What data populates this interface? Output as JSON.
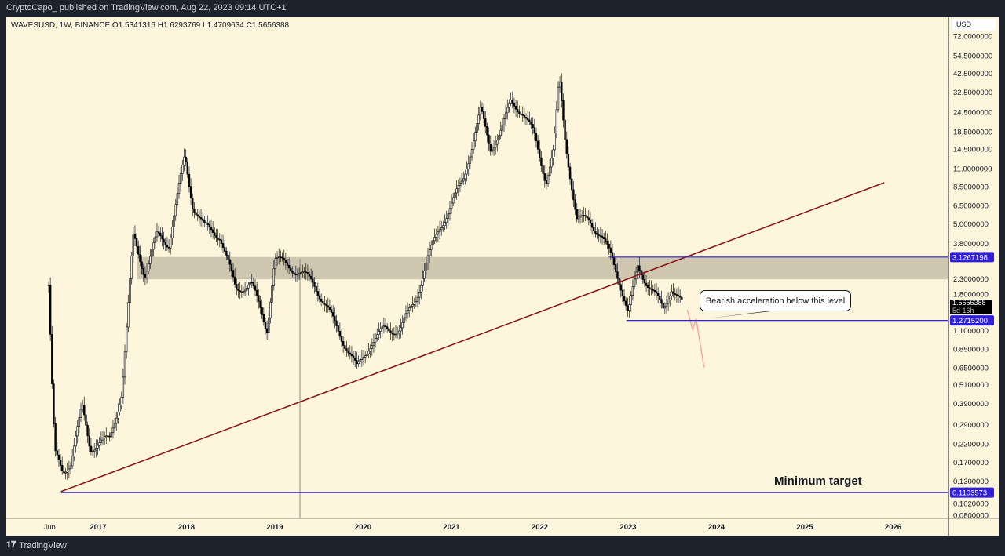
{
  "published": "CryptoCapo_ published on TradingView.com, Aug 22, 2023 09:14 UTC+1",
  "legend": "WAVESUSD, 1W, BINANCE  O1.5341316  H1.6293769  L1.4709634  C1.5656388",
  "currency": "USD",
  "footer_brand": "TradingView",
  "annotation": "Bearish acceleration below this level",
  "target_label": "Minimum target",
  "last_price": {
    "value": "1.5656388",
    "countdown": "5d 16h"
  },
  "colors": {
    "trendline": "#8b1a1a",
    "levels": "#2f1fd8",
    "zone": "#cfc6b0",
    "scribble": "#f4a6a6"
  },
  "chart_data": {
    "type": "candlestick",
    "symbol": "WAVESUSD",
    "interval": "1W",
    "y_scale": "log",
    "ylim": [
      0.08,
      72
    ],
    "y_ticks": [
      "72.0000000",
      "54.5000000",
      "42.5000000",
      "32.5000000",
      "24.5000000",
      "18.5000000",
      "14.5000000",
      "11.0000000",
      "8.5000000",
      "6.5000000",
      "5.0000000",
      "3.8000000",
      "2.3000000",
      "1.8000000",
      "1.1000000",
      "0.8500000",
      "0.6500000",
      "0.5100000",
      "0.3900000",
      "0.2900000",
      "0.2200000",
      "0.1700000",
      "0.1300000",
      "0.1020000",
      "0.0800000"
    ],
    "x_ticks": [
      {
        "label": "Jun",
        "t": 2016.45
      },
      {
        "label": "2017",
        "t": 2017
      },
      {
        "label": "2018",
        "t": 2018
      },
      {
        "label": "2019",
        "t": 2019
      },
      {
        "label": "2020",
        "t": 2020
      },
      {
        "label": "2021",
        "t": 2021
      },
      {
        "label": "2022",
        "t": 2022
      },
      {
        "label": "2023",
        "t": 2023
      },
      {
        "label": "2024",
        "t": 2024
      },
      {
        "label": "2025",
        "t": 2025
      },
      {
        "label": "2026",
        "t": 2026
      }
    ],
    "price_path": [
      [
        2016.44,
        2.1
      ],
      [
        2016.48,
        0.46
      ],
      [
        2016.51,
        0.19
      ],
      [
        2016.6,
        0.15
      ],
      [
        2016.69,
        0.17
      ],
      [
        2016.82,
        0.37
      ],
      [
        2016.91,
        0.21
      ],
      [
        2017.13,
        0.236
      ],
      [
        2017.27,
        0.46
      ],
      [
        2017.4,
        4.26
      ],
      [
        2017.53,
        2.44
      ],
      [
        2017.67,
        4.26
      ],
      [
        2017.8,
        3.8
      ],
      [
        2017.98,
        13
      ],
      [
        2018.07,
        6.6
      ],
      [
        2018.2,
        4.8
      ],
      [
        2018.38,
        4.26
      ],
      [
        2018.56,
        1.95
      ],
      [
        2018.73,
        2.18
      ],
      [
        2018.91,
        1.12
      ],
      [
        2019.0,
        3.04
      ],
      [
        2019.18,
        2.72
      ],
      [
        2019.44,
        2.18
      ],
      [
        2019.62,
        1.4
      ],
      [
        2019.8,
        0.9
      ],
      [
        2019.93,
        0.64
      ],
      [
        2020.07,
        0.9
      ],
      [
        2020.24,
        1.12
      ],
      [
        2020.42,
        1.12
      ],
      [
        2020.6,
        1.75
      ],
      [
        2020.73,
        3.04
      ],
      [
        2020.87,
        4.8
      ],
      [
        2021.0,
        6.6
      ],
      [
        2021.13,
        9.3
      ],
      [
        2021.22,
        14.5
      ],
      [
        2021.33,
        25
      ],
      [
        2021.44,
        14.5
      ],
      [
        2021.58,
        20
      ],
      [
        2021.67,
        28
      ],
      [
        2021.8,
        25
      ],
      [
        2021.93,
        18
      ],
      [
        2022.07,
        9.3
      ],
      [
        2022.16,
        14.5
      ],
      [
        2022.22,
        39.5
      ],
      [
        2022.29,
        16
      ],
      [
        2022.42,
        5.3
      ],
      [
        2022.56,
        5.3
      ],
      [
        2022.69,
        4.26
      ],
      [
        2022.82,
        3.04
      ],
      [
        2022.91,
        2.18
      ],
      [
        2023.0,
        1.4
      ],
      [
        2023.11,
        2.72
      ],
      [
        2023.27,
        1.95
      ],
      [
        2023.4,
        1.48
      ],
      [
        2023.49,
        2.06
      ],
      [
        2023.62,
        1.57
      ]
    ],
    "levels": [
      {
        "price": 3.1267198,
        "label": "3.1267198",
        "from": 2022.78
      },
      {
        "price": 1.27152,
        "label": "1.2715200",
        "from": 2022.98
      },
      {
        "price": 0.1103573,
        "label": "0.1103573",
        "from": 2016.58
      }
    ],
    "zone": {
      "low": 2.28,
      "high": 3.13,
      "from": 2017.44
    },
    "trendline": {
      "from": [
        2016.58,
        0.112
      ],
      "to": [
        2025.9,
        9.0
      ]
    },
    "projection": [
      [
        2023.67,
        1.48
      ],
      [
        2023.73,
        1.12
      ],
      [
        2023.77,
        1.3
      ],
      [
        2023.86,
        0.65
      ]
    ]
  }
}
